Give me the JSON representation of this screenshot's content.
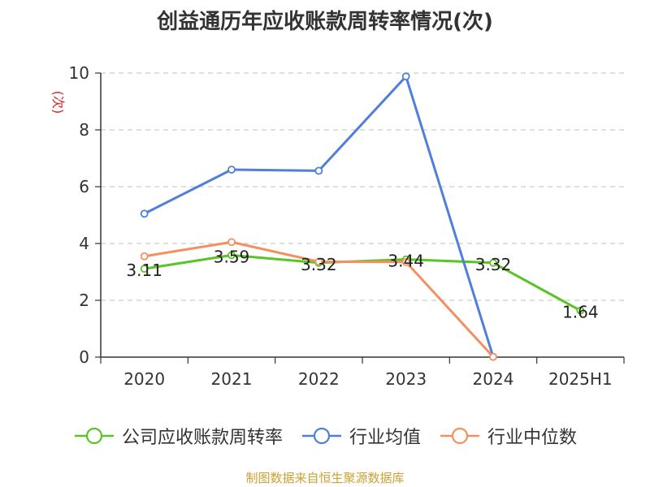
{
  "chart_data": {
    "type": "line",
    "title": "创益通历年应收账款周转率情况(次)",
    "ylabel": "(次)",
    "xlabel": "",
    "categories": [
      "2020",
      "2021",
      "2022",
      "2023",
      "2024",
      "2025H1"
    ],
    "ylim": [
      0,
      10
    ],
    "yticks": [
      0,
      2,
      4,
      6,
      8,
      10
    ],
    "grid": true,
    "legend_position": "bottom",
    "series": [
      {
        "name": "公司应收账款周转率",
        "color": "#5bc425",
        "values": [
          3.11,
          3.59,
          3.32,
          3.44,
          3.32,
          1.64
        ],
        "labels": [
          "3.11",
          "3.59",
          "3.32",
          "3.44",
          "3.32",
          "1.64"
        ]
      },
      {
        "name": "行业均值",
        "color": "#4f7fdb",
        "values": [
          5.05,
          6.6,
          6.56,
          9.88,
          0.01,
          null
        ]
      },
      {
        "name": "行业中位数",
        "color": "#f39061",
        "values": [
          3.55,
          4.05,
          3.36,
          3.35,
          0.01,
          null
        ]
      }
    ]
  },
  "source": "制图数据来自恒生聚源数据库"
}
